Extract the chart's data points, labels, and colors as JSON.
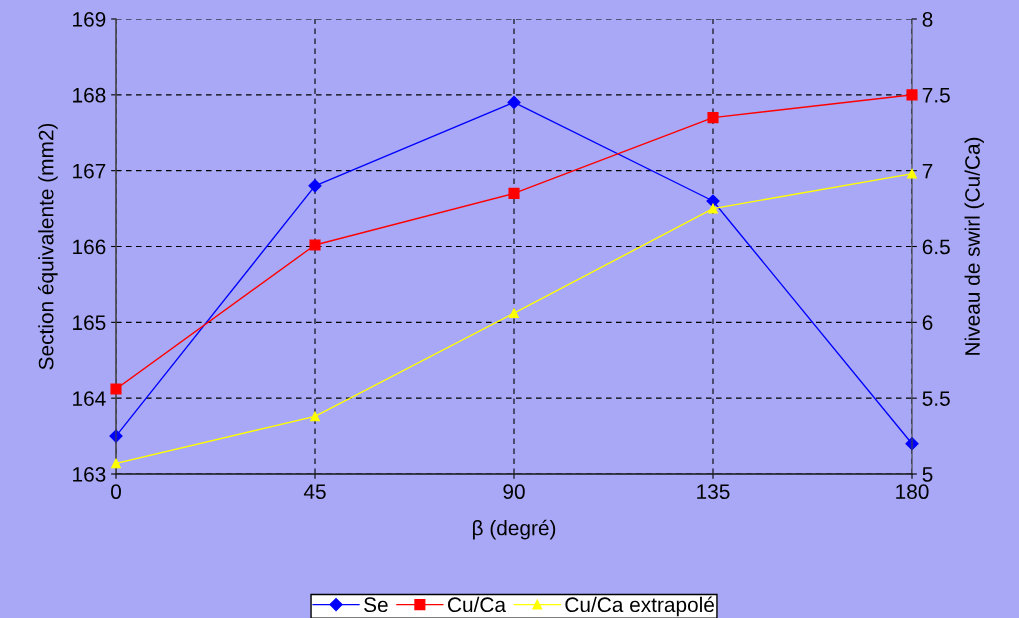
{
  "chart_data": {
    "type": "line",
    "xlabel": "β (degré)",
    "ylabel": "Section équivalente (mm2)",
    "y2label": "Niveau de swirl (Cu/Ca)",
    "x": [
      0,
      45,
      90,
      135,
      180
    ],
    "xlim": [
      0,
      180
    ],
    "xticks": [
      0,
      45,
      90,
      135,
      180
    ],
    "ylim": [
      163,
      169
    ],
    "yticks": [
      163,
      164,
      165,
      166,
      167,
      168,
      169
    ],
    "y2lim": [
      5,
      8
    ],
    "y2ticks": [
      5,
      {
        "value": 5.5,
        "label": "5.5"
      },
      6,
      {
        "value": 6.5,
        "label": "6.5"
      },
      7,
      {
        "value": 7.5,
        "label": "7.5"
      },
      8
    ],
    "grid": true,
    "legend": "bottom",
    "line_style": "solid",
    "series": [
      {
        "name": "Se",
        "color": "#0000ff",
        "marker": "diamond",
        "values": [
          163.5,
          166.8,
          167.9,
          166.6,
          163.4
        ]
      },
      {
        "name": "Cu/Ca",
        "color": "#ff0000",
        "marker": "square",
        "axis": "y2",
        "values": [
          5.56,
          6.51,
          6.85,
          7.35,
          7.5
        ]
      },
      {
        "name": "Cu/Ca extrapolé",
        "color": "#ffff00",
        "marker": "triangle",
        "axis": "y2",
        "values": [
          5.07,
          5.38,
          6.06,
          6.75,
          6.98
        ]
      }
    ]
  }
}
